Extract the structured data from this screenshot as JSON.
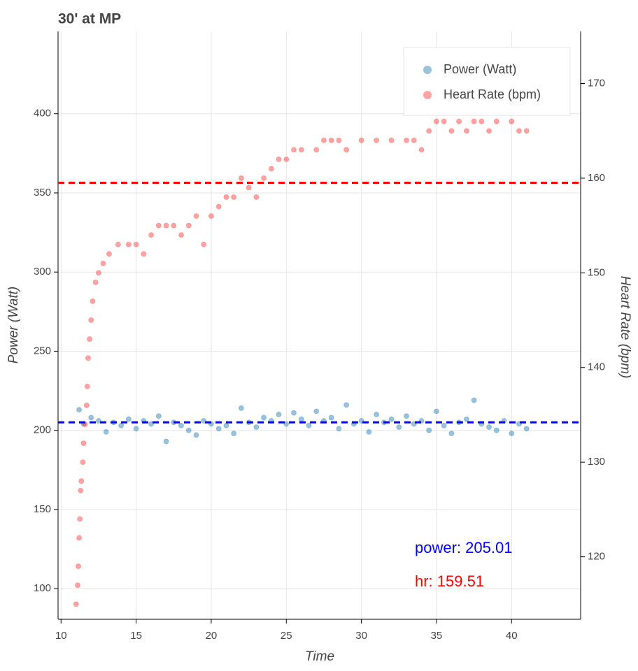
{
  "chart_data": {
    "type": "scatter",
    "title": "30' at MP",
    "x_label": "Time",
    "y_label": "Power (Watt)",
    "y2_label": "Heart Rate (bpm)",
    "xlim": [
      9.8,
      44.6
    ],
    "xticks": [
      10,
      15,
      20,
      25,
      30,
      35,
      40
    ],
    "ylim": [
      80.6,
      452
    ],
    "yticks": [
      100,
      150,
      200,
      250,
      300,
      350,
      400
    ],
    "y2lim": [
      113.4,
      175.5
    ],
    "y2ticks": [
      120,
      130,
      140,
      150,
      160,
      170
    ],
    "grid": true,
    "legend": "top-right",
    "series": [
      {
        "name": "Power (Watt)",
        "color": "#1f77b4",
        "axis": "y",
        "x": [
          11.2,
          11.5,
          12.0,
          12.5,
          13.0,
          13.5,
          14.0,
          14.5,
          15.0,
          15.5,
          16.0,
          16.5,
          17.0,
          17.5,
          18.0,
          18.5,
          19.0,
          19.5,
          20.0,
          20.5,
          21.0,
          21.5,
          22.0,
          22.5,
          23.0,
          23.5,
          24.0,
          24.5,
          25.0,
          25.5,
          26.0,
          26.5,
          27.0,
          27.5,
          28.0,
          28.5,
          29.0,
          29.5,
          30.0,
          30.5,
          31.0,
          31.5,
          32.0,
          32.5,
          33.0,
          33.5,
          34.0,
          34.5,
          35.0,
          35.5,
          36.0,
          36.5,
          37.0,
          37.5,
          38.0,
          38.5,
          39.0,
          39.5,
          40.0,
          40.5,
          41.0
        ],
        "values": [
          213,
          204,
          208,
          206,
          199,
          205,
          203,
          207,
          201,
          206,
          204,
          209,
          193,
          205,
          203,
          200,
          197,
          206,
          204,
          201,
          203,
          198,
          214,
          205,
          202,
          208,
          206,
          210,
          204,
          211,
          207,
          203,
          212,
          206,
          208,
          201,
          216,
          204,
          206,
          199,
          210,
          205,
          207,
          202,
          209,
          204,
          206,
          200,
          212,
          203,
          198,
          205,
          207,
          219,
          204,
          202,
          200,
          206,
          198,
          204,
          201
        ]
      },
      {
        "name": "Heart Rate (bpm)",
        "color": "#ff3333",
        "axis": "y2",
        "x": [
          11.0,
          11.1,
          11.15,
          11.2,
          11.25,
          11.3,
          11.35,
          11.45,
          11.5,
          11.6,
          11.7,
          11.75,
          11.8,
          11.9,
          12.0,
          12.1,
          12.3,
          12.5,
          12.8,
          13.2,
          13.8,
          14.5,
          15.0,
          15.5,
          16.0,
          16.5,
          17.0,
          17.5,
          18.0,
          18.5,
          19.0,
          19.5,
          20.0,
          20.5,
          21.0,
          21.5,
          22.0,
          22.5,
          23.0,
          23.5,
          24.0,
          24.5,
          25.0,
          25.5,
          26.0,
          27.0,
          27.5,
          28.0,
          28.5,
          29.0,
          30.0,
          31.0,
          32.0,
          33.0,
          33.5,
          34.0,
          34.5,
          35.0,
          35.5,
          36.0,
          36.5,
          37.0,
          37.5,
          38.0,
          38.5,
          39.0,
          40.0,
          40.5,
          41.0
        ],
        "values": [
          115,
          117,
          119,
          122,
          124,
          127,
          128,
          130,
          132,
          134,
          136,
          138,
          141,
          143,
          145,
          147,
          149,
          150,
          151,
          152,
          153,
          153,
          153,
          152,
          154,
          155,
          155,
          155,
          154,
          155,
          156,
          153,
          156,
          157,
          158,
          158,
          160,
          159,
          158,
          160,
          161,
          162,
          162,
          163,
          163,
          163,
          164,
          164,
          164,
          163,
          164,
          164,
          164,
          164,
          164,
          163,
          165,
          166,
          166,
          165,
          166,
          165,
          166,
          166,
          165,
          166,
          166,
          165,
          165
        ]
      }
    ],
    "hlines": [
      {
        "value": 205.01,
        "axis": "y",
        "color": "#0000ff",
        "label": "power: 205.01"
      },
      {
        "value": 159.51,
        "axis": "y2",
        "color": "#ff0000",
        "label": "hr: 159.51"
      }
    ]
  }
}
